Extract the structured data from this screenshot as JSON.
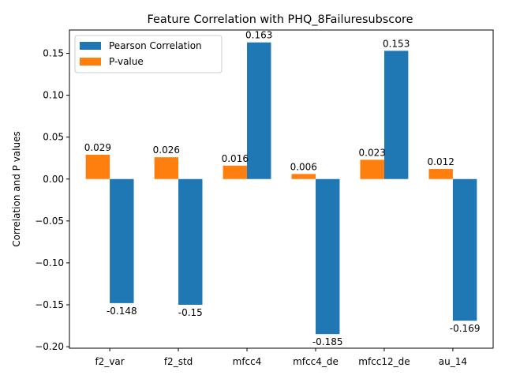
{
  "chart_data": {
    "type": "bar",
    "title": "Feature Correlation with PHQ_8Failuresubscore",
    "xlabel": "",
    "ylabel": "Correlation and P values",
    "categories": [
      "f2_var",
      "f2_std",
      "mfcc4",
      "mfcc4_de",
      "mfcc12_de",
      "au_14"
    ],
    "series": [
      {
        "name": "P-value",
        "color": "#ff7f0e",
        "values": [
          0.029,
          0.026,
          0.016,
          0.006,
          0.023,
          0.012
        ],
        "labels": [
          "0.029",
          "0.026",
          "0.016",
          "0.006",
          "0.023",
          "0.012"
        ]
      },
      {
        "name": "Pearson Correlation",
        "color": "#1f77b4",
        "values": [
          -0.148,
          -0.15,
          0.163,
          -0.185,
          0.153,
          -0.169
        ],
        "labels": [
          "-0.148",
          "-0.15",
          "0.163",
          "-0.185",
          "0.153",
          "-0.169"
        ]
      }
    ],
    "legend_order": [
      "Pearson Correlation",
      "P-value"
    ],
    "legend_position": "upper-left",
    "ylim": [
      -0.2018,
      0.1778
    ],
    "yticks": [
      -0.2,
      -0.15,
      -0.1,
      -0.05,
      0.0,
      0.05,
      0.1,
      0.15
    ],
    "ytick_labels": [
      "−0.20",
      "−0.15",
      "−0.10",
      "−0.05",
      "0.00",
      "0.05",
      "0.10",
      "0.15"
    ],
    "grid": false
  }
}
